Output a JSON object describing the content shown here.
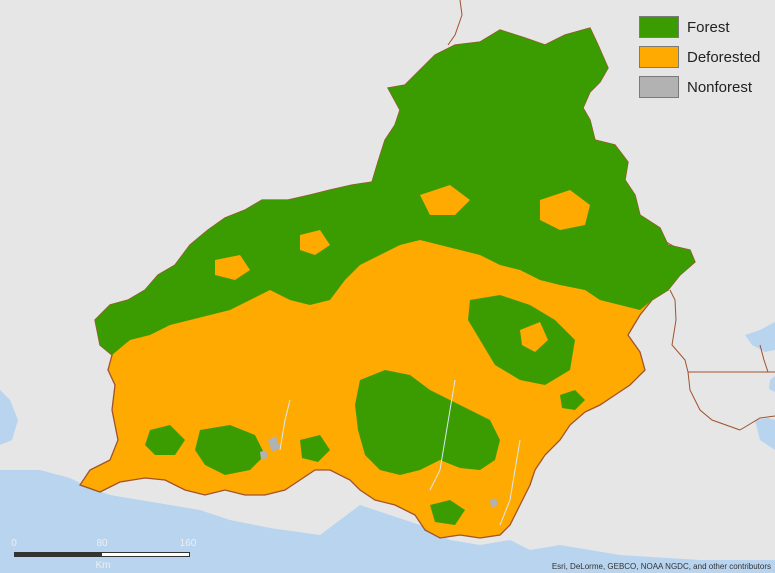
{
  "legend": {
    "items": [
      {
        "label": "Forest",
        "color": "#3a9c00"
      },
      {
        "label": "Deforested",
        "color": "#ffaa00"
      },
      {
        "label": "Nonforest",
        "color": "#b2b2b2"
      }
    ]
  },
  "scalebar": {
    "ticks": [
      "0",
      "80",
      "160"
    ],
    "unit": "Km"
  },
  "attribution": "Esri, DeLorme, GEBCO, NOAA NGDC, and other contributors",
  "colors": {
    "sea": "#b9d4ee",
    "land_background": "#e6e6e6",
    "boundary": "#a0522d",
    "forest": "#3a9c00",
    "deforested": "#ffaa00"
  }
}
